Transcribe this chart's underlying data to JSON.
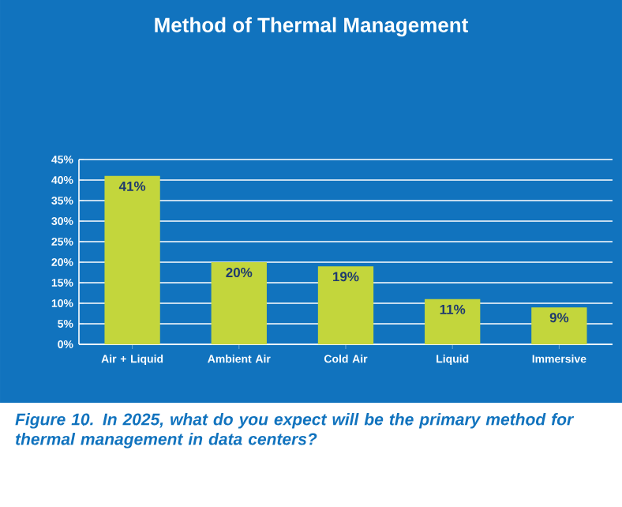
{
  "chart_data": {
    "type": "bar",
    "title": "Method of Thermal Management",
    "categories": [
      "Air + Liquid",
      "Ambient Air",
      "Cold Air",
      "Liquid",
      "Immersive"
    ],
    "values": [
      41,
      20,
      19,
      11,
      9
    ],
    "value_labels": [
      "41%",
      "20%",
      "19%",
      "11%",
      "9%"
    ],
    "color": "#c3d63c",
    "ylim": [
      0,
      45
    ],
    "yticks": [
      {
        "value": 0,
        "label": "0%"
      },
      {
        "value": 5,
        "label": "5%"
      },
      {
        "value": 10,
        "label": "10%"
      },
      {
        "value": 15,
        "label": "15%"
      },
      {
        "value": 20,
        "label": "20%"
      },
      {
        "value": 25,
        "label": "25%"
      },
      {
        "value": 30,
        "label": "30%"
      },
      {
        "value": 35,
        "label": "35%"
      },
      {
        "value": 40,
        "label": "40%"
      },
      {
        "value": 45,
        "label": "45%"
      }
    ],
    "grid": "y",
    "annotations": [
      "Figure 10. In 2025, what do you expect will be the primary method for thermal management in data centers?"
    ]
  }
}
